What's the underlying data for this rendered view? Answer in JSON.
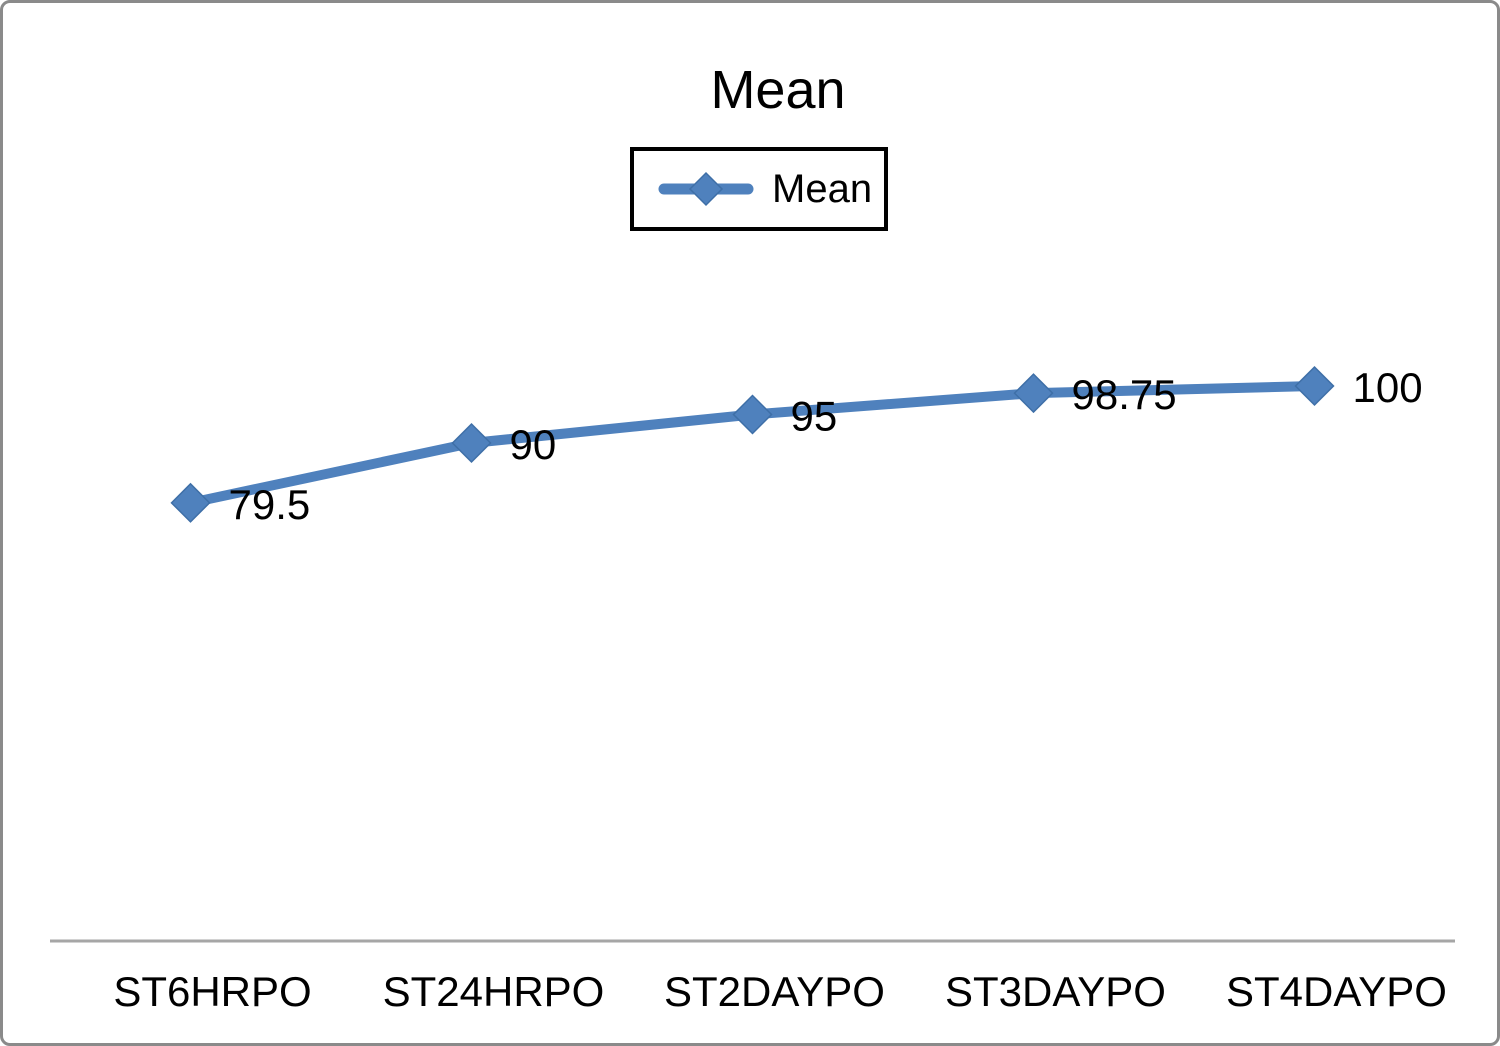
{
  "chart": {
    "title": "Mean",
    "legend": {
      "label": "Mean"
    }
  },
  "colors": {
    "series_line": "#4F81BD",
    "marker_fill": "#4F81BD",
    "marker_edge": "#3E6FA7",
    "axis_line": "#A6A6A6",
    "frame_border": "#8A8A8A",
    "legend_border": "#000000",
    "text": "#000000",
    "background": "#FFFFFF"
  },
  "chart_data": {
    "type": "line",
    "title": "Mean",
    "categories": [
      "ST6HRPO",
      "ST24HRPO",
      "ST2DAYPO",
      "ST3DAYPO",
      "ST4DAYPO"
    ],
    "series": [
      {
        "name": "Mean",
        "values": [
          79.5,
          90,
          95,
          98.75,
          100
        ]
      }
    ],
    "data_labels": [
      "79.5",
      "90",
      "95",
      "98.75",
      "100"
    ],
    "xlabel": "",
    "ylabel": "",
    "ylim": [
      0,
      100
    ],
    "y_axis_visible": false,
    "grid": false,
    "legend_position": "top-center",
    "marker_shape": "diamond"
  }
}
